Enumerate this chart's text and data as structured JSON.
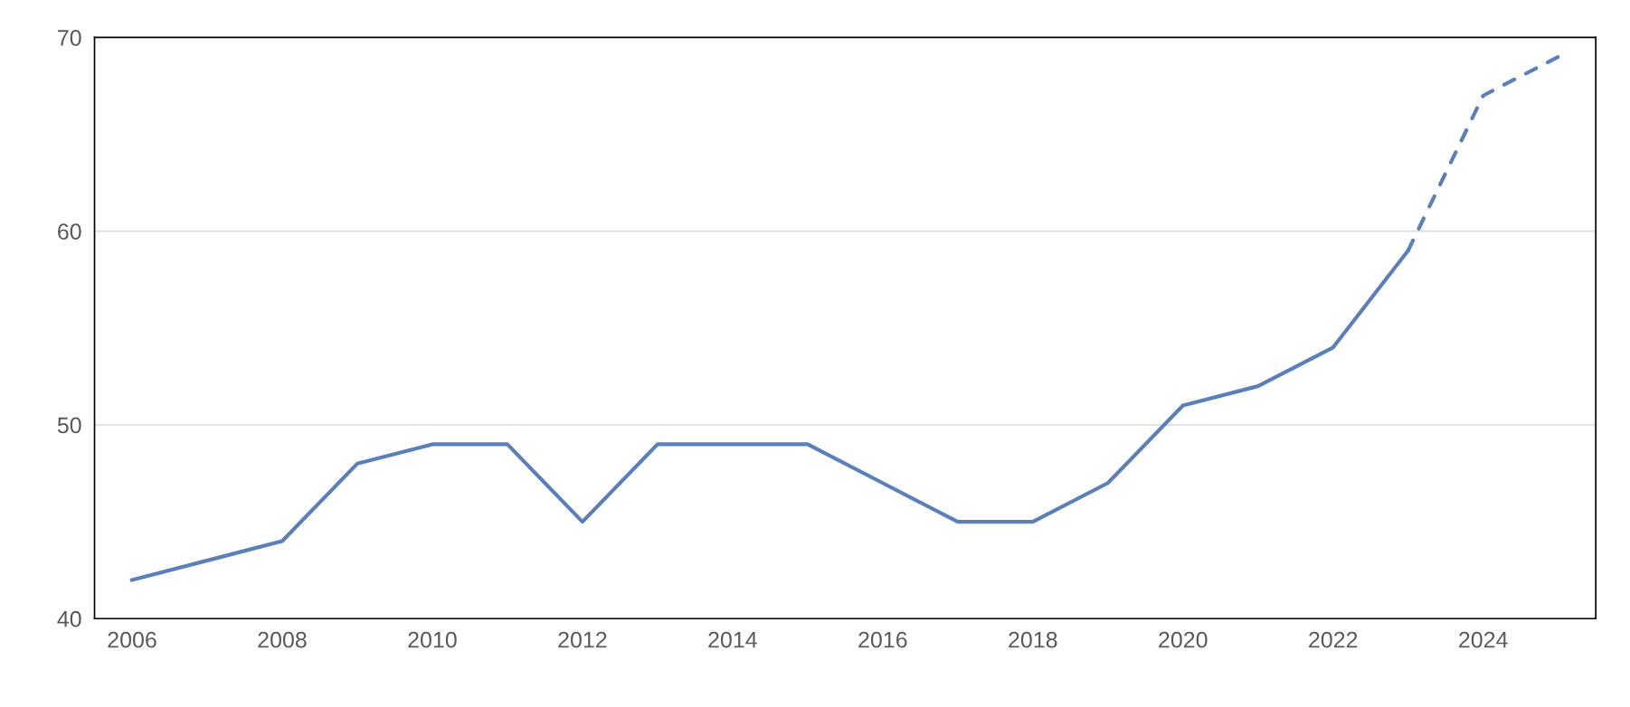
{
  "chart_data": {
    "type": "line",
    "series": [
      {
        "color": "#5b7fbb",
        "line_style": "solid",
        "x": [
          2006,
          2008,
          2009,
          2010,
          2011,
          2012,
          2013,
          2014,
          2015,
          2016,
          2017,
          2018,
          2019,
          2020,
          2021,
          2022,
          2023
        ],
        "values": [
          42,
          44,
          48,
          49,
          49,
          45,
          49,
          49,
          49,
          47,
          45,
          45,
          47,
          51,
          52,
          54,
          59
        ]
      },
      {
        "color": "#5b7fbb",
        "line_style": "dashed",
        "x": [
          2023,
          2024,
          2025
        ],
        "values": [
          59,
          67,
          69
        ]
      }
    ],
    "xlim": [
      2005.5,
      2025.5
    ],
    "xticks": [
      2006,
      2008,
      2010,
      2012,
      2014,
      2016,
      2018,
      2020,
      2022,
      2024
    ],
    "ylim": [
      40,
      70
    ],
    "yticks": [
      40,
      50,
      60,
      70
    ],
    "grid": "y",
    "marker": "none",
    "legend": false
  }
}
